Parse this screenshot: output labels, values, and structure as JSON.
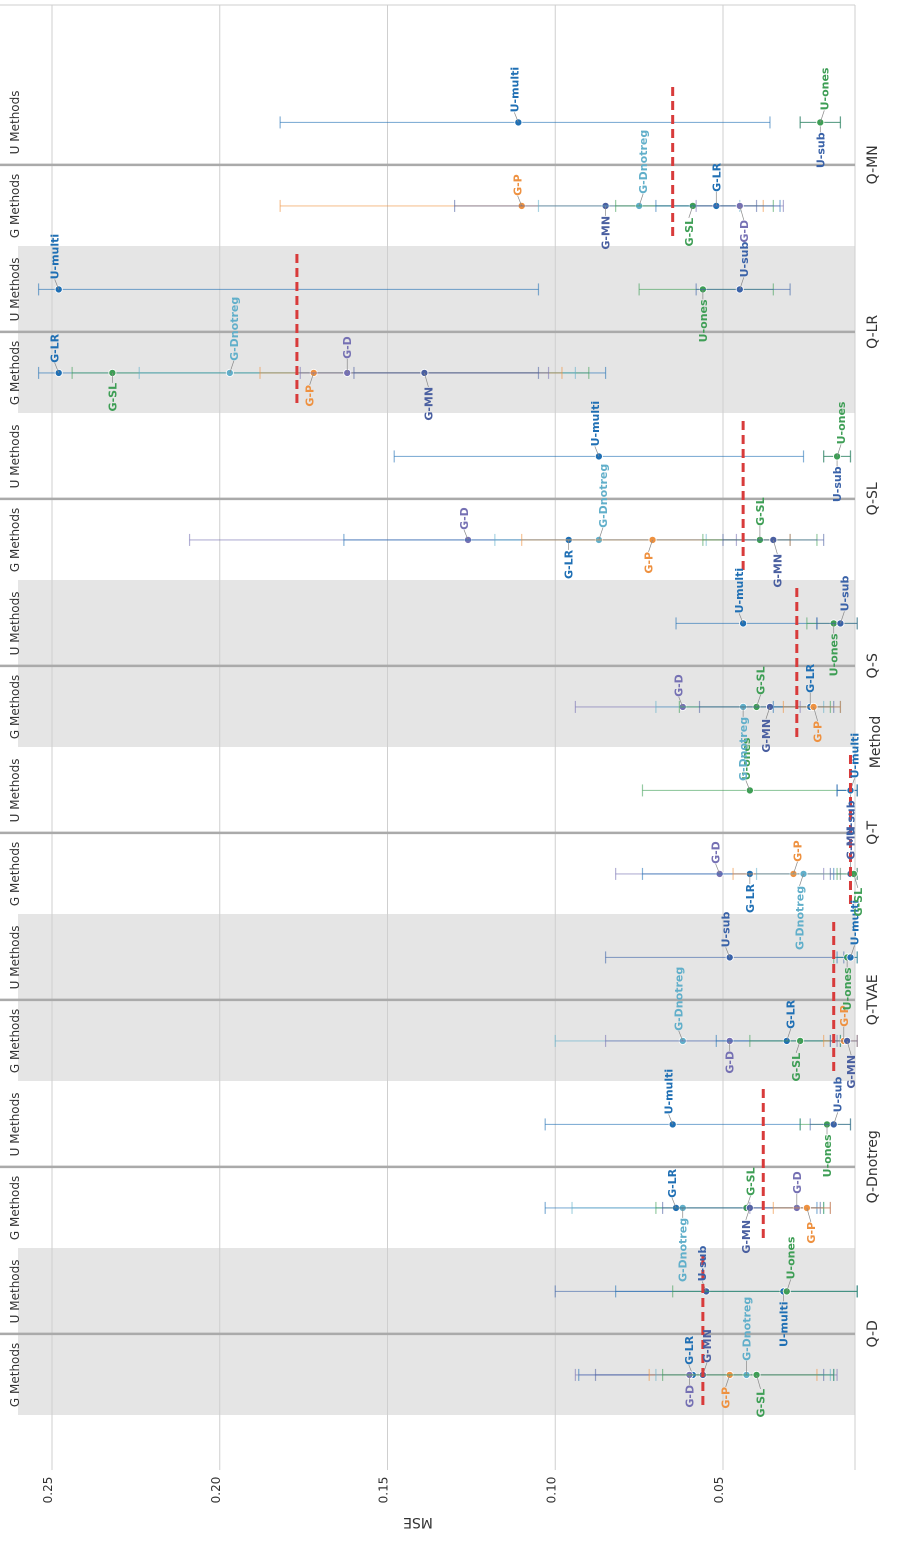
{
  "chart_data": {
    "type": "scatter",
    "orientation": "rotated",
    "xlabel": "MSE",
    "xlim": [
      0.01,
      0.26
    ],
    "xticks": [
      0.25,
      0.2,
      0.15,
      0.1,
      0.05
    ],
    "xtick_labels": [
      "0.25",
      "0.20",
      "0.15",
      "0.10",
      "0.05"
    ],
    "grid": true,
    "legend_title": "Method",
    "group_labels": [
      "G Methods",
      "U Methods"
    ],
    "colors": {
      "G-D": "#7570b3",
      "G-MN": "#4a5fa0",
      "G-LR": "#1f6fb4",
      "G-SL": "#3e9e55",
      "G-P": "#ee9140",
      "G-Dnotreg": "#61afca",
      "U-multi": "#1f6fb4",
      "U-sub": "#3a62a8",
      "U-ones": "#3e9e55",
      "mean_line": "#d83b3b",
      "band": "#e5e5e5",
      "separator": "#aaaaaa"
    },
    "panels": [
      {
        "name": "Q-D",
        "shaded": true,
        "mean": 0.056,
        "g_methods": [
          {
            "method": "G-LR",
            "value": 0.059,
            "lo": 0.017,
            "hi": 0.093
          },
          {
            "method": "G-D",
            "value": 0.06,
            "lo": 0.016,
            "hi": 0.094
          },
          {
            "method": "G-MN",
            "value": 0.056,
            "lo": 0.02,
            "hi": 0.088
          },
          {
            "method": "G-P",
            "value": 0.048,
            "lo": 0.022,
            "hi": 0.072
          },
          {
            "method": "G-Dnotreg",
            "value": 0.043,
            "lo": 0.018,
            "hi": 0.07
          },
          {
            "method": "G-SL",
            "value": 0.04,
            "lo": 0.017,
            "hi": 0.068
          }
        ],
        "u_methods": [
          {
            "method": "U-sub",
            "value": 0.055,
            "lo": 0.01,
            "hi": 0.1
          },
          {
            "method": "U-multi",
            "value": 0.032,
            "lo": 0.01,
            "hi": 0.082
          },
          {
            "method": "U-ones",
            "value": 0.031,
            "lo": 0.01,
            "hi": 0.065
          }
        ]
      },
      {
        "name": "Q-Dnotreg",
        "shaded": false,
        "mean": 0.038,
        "g_methods": [
          {
            "method": "G-LR",
            "value": 0.064,
            "lo": 0.022,
            "hi": 0.103
          },
          {
            "method": "G-Dnotreg",
            "value": 0.062,
            "lo": 0.02,
            "hi": 0.095
          },
          {
            "method": "G-SL",
            "value": 0.043,
            "lo": 0.02,
            "hi": 0.07
          },
          {
            "method": "G-MN",
            "value": 0.042,
            "lo": 0.021,
            "hi": 0.068
          },
          {
            "method": "G-D",
            "value": 0.028,
            "lo": 0.018,
            "hi": 0.042
          },
          {
            "method": "G-P",
            "value": 0.025,
            "lo": 0.018,
            "hi": 0.035
          }
        ],
        "u_methods": [
          {
            "method": "U-multi",
            "value": 0.065,
            "lo": 0.027,
            "hi": 0.103
          },
          {
            "method": "U-ones",
            "value": 0.019,
            "lo": 0.012,
            "hi": 0.027
          },
          {
            "method": "U-sub",
            "value": 0.017,
            "lo": 0.012,
            "hi": 0.024
          }
        ]
      },
      {
        "name": "Q-TVAE",
        "shaded": true,
        "mean": 0.017,
        "g_methods": [
          {
            "method": "G-Dnotreg",
            "value": 0.062,
            "lo": 0.018,
            "hi": 0.1
          },
          {
            "method": "G-D",
            "value": 0.048,
            "lo": 0.016,
            "hi": 0.085
          },
          {
            "method": "G-LR",
            "value": 0.031,
            "lo": 0.015,
            "hi": 0.052
          },
          {
            "method": "G-SL",
            "value": 0.027,
            "lo": 0.015,
            "hi": 0.042
          },
          {
            "method": "G-P",
            "value": 0.014,
            "lo": 0.01,
            "hi": 0.02
          },
          {
            "method": "G-MN",
            "value": 0.013,
            "lo": 0.01,
            "hi": 0.018
          }
        ],
        "u_methods": [
          {
            "method": "U-sub",
            "value": 0.048,
            "lo": 0.014,
            "hi": 0.085
          },
          {
            "method": "U-ones",
            "value": 0.013,
            "lo": 0.01,
            "hi": 0.017
          },
          {
            "method": "U-multi",
            "value": 0.012,
            "lo": 0.01,
            "hi": 0.016
          }
        ]
      },
      {
        "name": "Q-T",
        "shaded": false,
        "mean": 0.012,
        "g_methods": [
          {
            "method": "G-D",
            "value": 0.051,
            "lo": 0.02,
            "hi": 0.082
          },
          {
            "method": "G-LR",
            "value": 0.042,
            "lo": 0.017,
            "hi": 0.074
          },
          {
            "method": "G-P",
            "value": 0.029,
            "lo": 0.015,
            "hi": 0.047
          },
          {
            "method": "G-Dnotreg",
            "value": 0.026,
            "lo": 0.015,
            "hi": 0.04
          },
          {
            "method": "G-MN",
            "value": 0.012,
            "lo": 0.01,
            "hi": 0.018
          },
          {
            "method": "G-SL",
            "value": 0.011,
            "lo": 0.01,
            "hi": 0.016
          }
        ],
        "u_methods": [
          {
            "method": "U-ones",
            "value": 0.042,
            "lo": 0.01,
            "hi": 0.074
          },
          {
            "method": "U-sub",
            "value": 0.012,
            "lo": 0.01,
            "hi": 0.016
          },
          {
            "method": "U-multi",
            "value": 0.012,
            "lo": 0.01,
            "hi": 0.016
          }
        ]
      },
      {
        "name": "Q-S",
        "shaded": true,
        "mean": 0.028,
        "g_methods": [
          {
            "method": "G-D",
            "value": 0.062,
            "lo": 0.027,
            "hi": 0.094
          },
          {
            "method": "G-Dnotreg",
            "value": 0.044,
            "lo": 0.02,
            "hi": 0.07
          },
          {
            "method": "G-SL",
            "value": 0.04,
            "lo": 0.018,
            "hi": 0.063
          },
          {
            "method": "G-MN",
            "value": 0.036,
            "lo": 0.017,
            "hi": 0.057
          },
          {
            "method": "G-LR",
            "value": 0.024,
            "lo": 0.015,
            "hi": 0.035
          },
          {
            "method": "G-P",
            "value": 0.023,
            "lo": 0.015,
            "hi": 0.032
          }
        ],
        "u_methods": [
          {
            "method": "U-multi",
            "value": 0.044,
            "lo": 0.022,
            "hi": 0.064
          },
          {
            "method": "U-ones",
            "value": 0.017,
            "lo": 0.01,
            "hi": 0.025
          },
          {
            "method": "U-sub",
            "value": 0.015,
            "lo": 0.01,
            "hi": 0.022
          }
        ]
      },
      {
        "name": "Q-SL",
        "shaded": false,
        "mean": 0.044,
        "g_methods": [
          {
            "method": "G-D",
            "value": 0.126,
            "lo": 0.046,
            "hi": 0.209
          },
          {
            "method": "G-LR",
            "value": 0.096,
            "lo": 0.03,
            "hi": 0.163
          },
          {
            "method": "G-Dnotreg",
            "value": 0.087,
            "lo": 0.055,
            "hi": 0.118
          },
          {
            "method": "G-P",
            "value": 0.071,
            "lo": 0.03,
            "hi": 0.11
          },
          {
            "method": "G-SL",
            "value": 0.039,
            "lo": 0.022,
            "hi": 0.056
          },
          {
            "method": "G-MN",
            "value": 0.035,
            "lo": 0.02,
            "hi": 0.05
          }
        ],
        "u_methods": [
          {
            "method": "U-multi",
            "value": 0.087,
            "lo": 0.026,
            "hi": 0.148
          },
          {
            "method": "U-sub",
            "value": 0.016,
            "lo": 0.012,
            "hi": 0.02
          },
          {
            "method": "U-ones",
            "value": 0.016,
            "lo": 0.012,
            "hi": 0.02
          }
        ]
      },
      {
        "name": "Q-LR",
        "shaded": true,
        "mean": 0.177,
        "g_methods": [
          {
            "method": "G-LR",
            "value": 0.248,
            "lo": 0.085,
            "hi": 0.254
          },
          {
            "method": "G-SL",
            "value": 0.232,
            "lo": 0.09,
            "hi": 0.244
          },
          {
            "method": "G-Dnotreg",
            "value": 0.197,
            "lo": 0.094,
            "hi": 0.224
          },
          {
            "method": "G-P",
            "value": 0.172,
            "lo": 0.098,
            "hi": 0.188
          },
          {
            "method": "G-D",
            "value": 0.162,
            "lo": 0.102,
            "hi": 0.176
          },
          {
            "method": "G-MN",
            "value": 0.139,
            "lo": 0.105,
            "hi": 0.16
          }
        ],
        "u_methods": [
          {
            "method": "U-multi",
            "value": 0.248,
            "lo": 0.105,
            "hi": 0.254
          },
          {
            "method": "U-ones",
            "value": 0.056,
            "lo": 0.035,
            "hi": 0.075
          },
          {
            "method": "U-sub",
            "value": 0.045,
            "lo": 0.03,
            "hi": 0.058
          }
        ]
      },
      {
        "name": "Q-MN",
        "shaded": false,
        "mean": 0.065,
        "g_methods": [
          {
            "method": "G-P",
            "value": 0.11,
            "lo": 0.038,
            "hi": 0.182
          },
          {
            "method": "G-MN",
            "value": 0.085,
            "lo": 0.04,
            "hi": 0.13
          },
          {
            "method": "G-Dnotreg",
            "value": 0.075,
            "lo": 0.045,
            "hi": 0.105
          },
          {
            "method": "G-SL",
            "value": 0.059,
            "lo": 0.035,
            "hi": 0.082
          },
          {
            "method": "G-LR",
            "value": 0.052,
            "lo": 0.033,
            "hi": 0.07
          },
          {
            "method": "G-D",
            "value": 0.045,
            "lo": 0.032,
            "hi": 0.058
          }
        ],
        "u_methods": [
          {
            "method": "U-multi",
            "value": 0.111,
            "lo": 0.036,
            "hi": 0.182
          },
          {
            "method": "U-sub",
            "value": 0.021,
            "lo": 0.015,
            "hi": 0.027
          },
          {
            "method": "U-ones",
            "value": 0.021,
            "lo": 0.015,
            "hi": 0.027
          }
        ]
      }
    ]
  }
}
